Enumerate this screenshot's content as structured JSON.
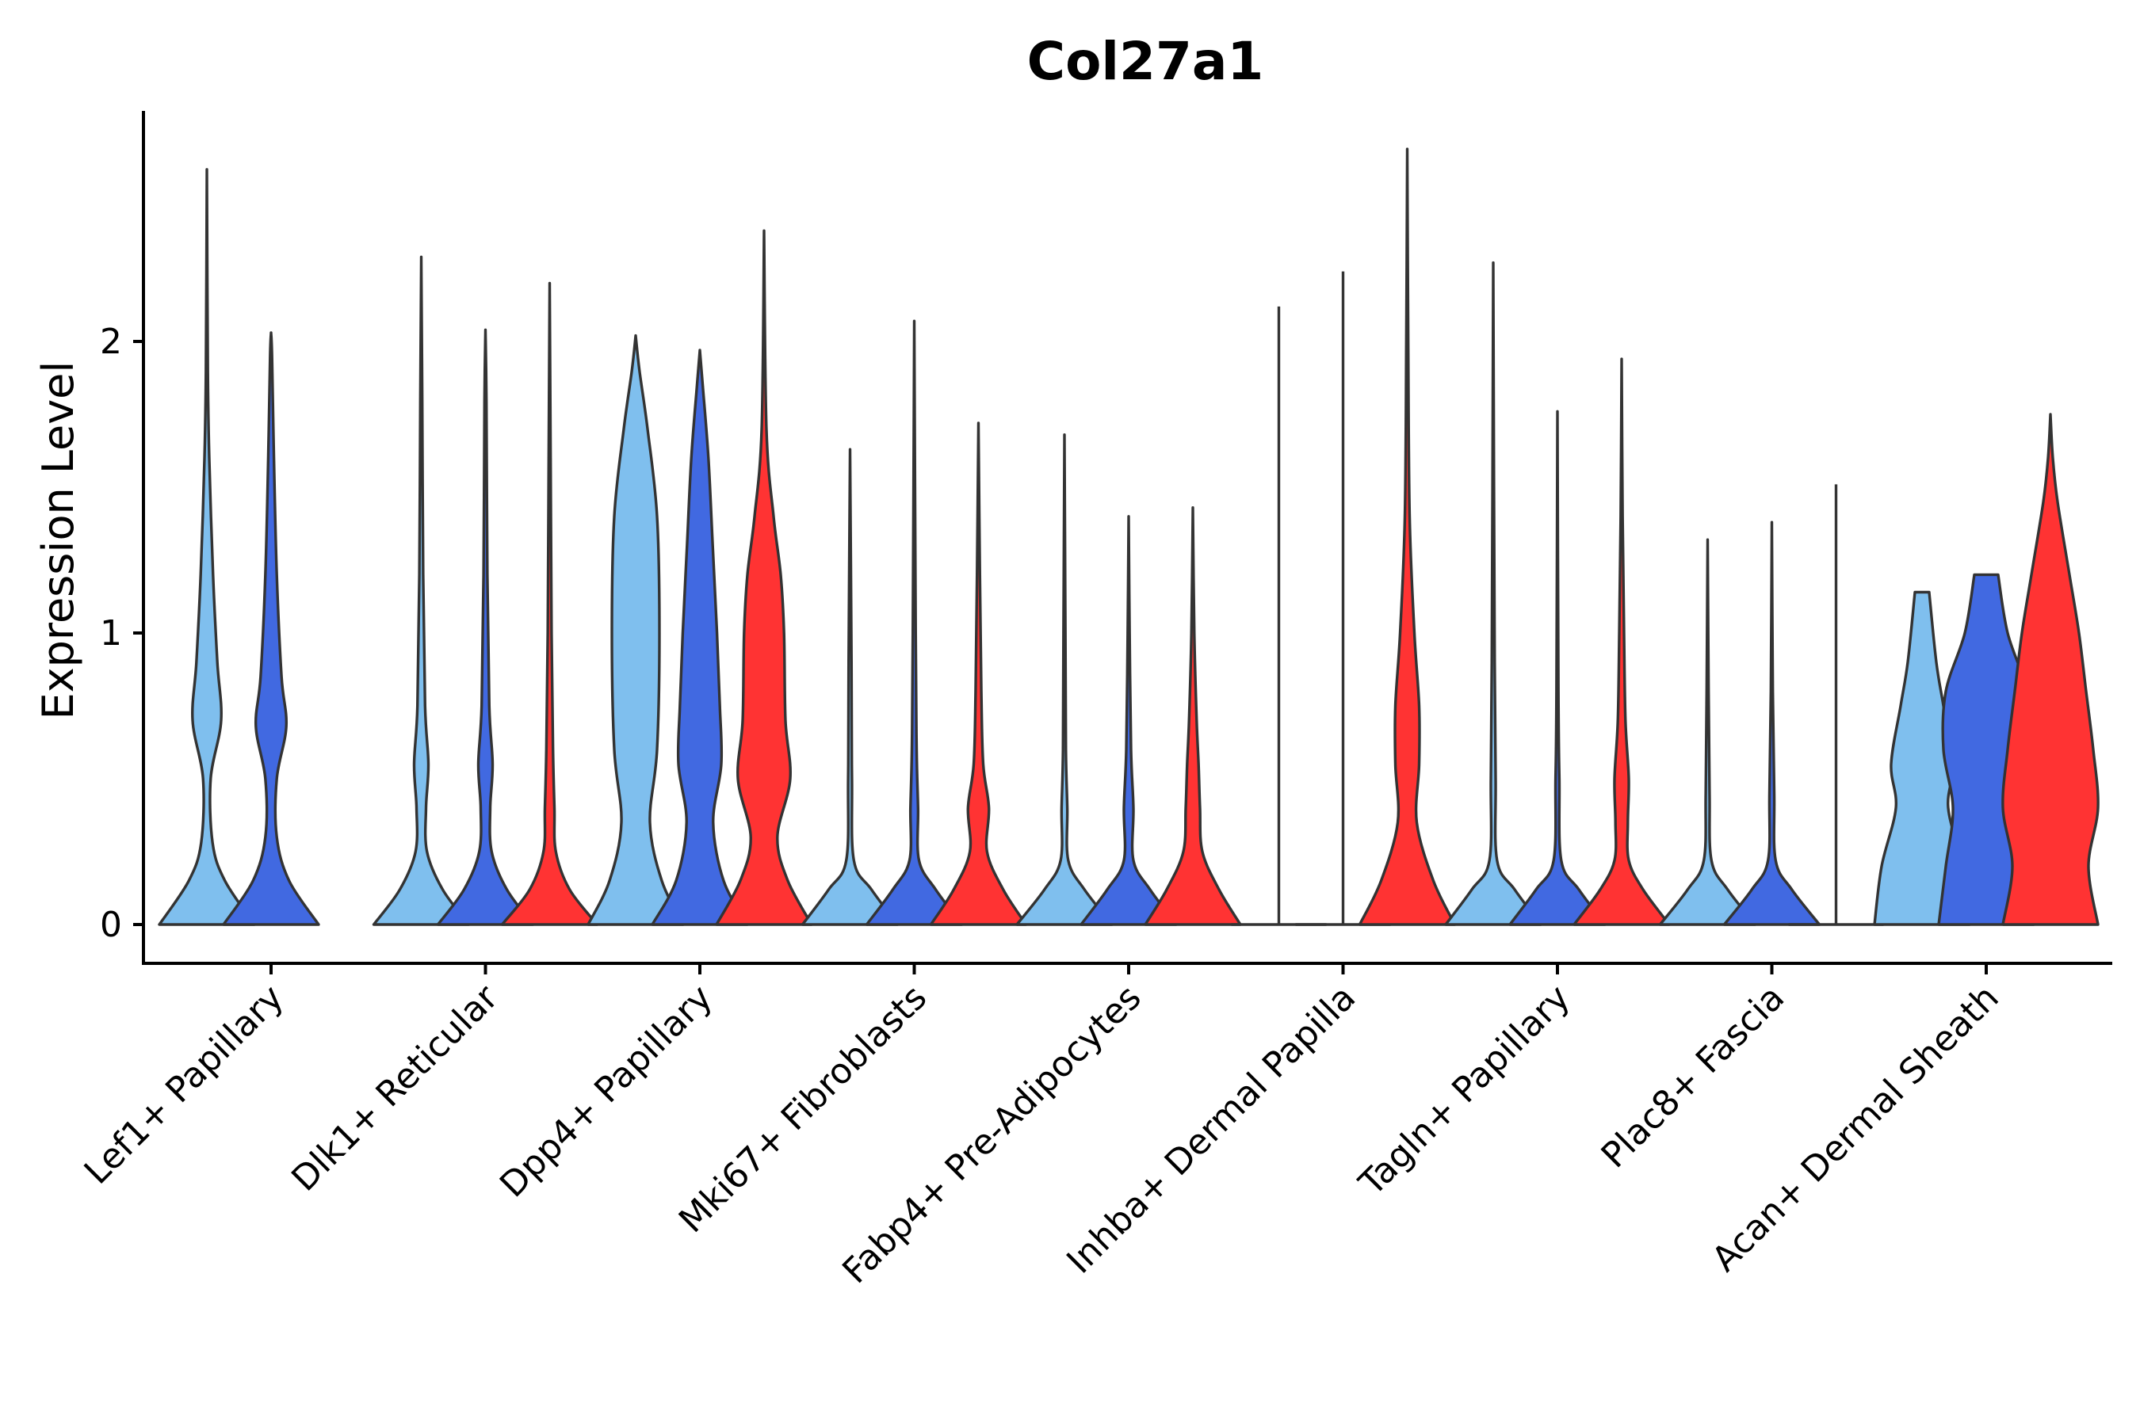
{
  "chart_data": {
    "type": "violin",
    "title": "Col27a1",
    "xlabel": "",
    "ylabel": "Expression Level",
    "ylim": [
      -0.13,
      2.8
    ],
    "yticks": [
      0,
      1,
      2
    ],
    "grid": false,
    "legend": "none",
    "colors": {
      "sample1": "#7fbfee",
      "sample2": "#4169e1",
      "sample3": "#ff3333",
      "outline": "#333333"
    },
    "categories": [
      "Lef1+ Papillary",
      "Dlk1+ Reticular",
      "Dpp4+ Papillary",
      "Mki67+ Fibroblasts",
      "Fabp4+ Pre-Adipocytes",
      "Inhba+ Dermal Papilla",
      "Tagln+ Papillary",
      "Plac8+ Fascia",
      "Acan+ Dermal Sheath"
    ],
    "violins": [
      {
        "category": 0,
        "slot": 0,
        "color": "sample1",
        "max": 2.59,
        "top_flat": false,
        "profile": [
          [
            0,
            1
          ],
          [
            0.15,
            0.38
          ],
          [
            0.28,
            0.12
          ],
          [
            0.5,
            0.08
          ],
          [
            0.7,
            0.3
          ],
          [
            0.9,
            0.22
          ],
          [
            1.2,
            0.13
          ],
          [
            1.6,
            0.05
          ],
          [
            1.9,
            0.02
          ],
          [
            2.59,
            0
          ]
        ]
      },
      {
        "category": 0,
        "slot": 1,
        "color": "sample2",
        "max": 2.03,
        "top_flat": false,
        "profile": [
          [
            0,
            1
          ],
          [
            0.15,
            0.38
          ],
          [
            0.3,
            0.12
          ],
          [
            0.5,
            0.12
          ],
          [
            0.68,
            0.32
          ],
          [
            0.85,
            0.22
          ],
          [
            1.2,
            0.12
          ],
          [
            1.6,
            0.06
          ],
          [
            1.95,
            0.02
          ],
          [
            2.03,
            0
          ]
        ]
      },
      {
        "category": 1,
        "slot": 0,
        "color": "sample1",
        "max": 2.29,
        "top_flat": false,
        "profile": [
          [
            0,
            1
          ],
          [
            0.12,
            0.45
          ],
          [
            0.25,
            0.12
          ],
          [
            0.4,
            0.1
          ],
          [
            0.55,
            0.15
          ],
          [
            0.75,
            0.08
          ],
          [
            1.2,
            0.04
          ],
          [
            1.8,
            0.02
          ],
          [
            2.29,
            0
          ]
        ]
      },
      {
        "category": 1,
        "slot": 1,
        "color": "sample2",
        "max": 2.04,
        "top_flat": false,
        "profile": [
          [
            0,
            1
          ],
          [
            0.12,
            0.45
          ],
          [
            0.25,
            0.13
          ],
          [
            0.4,
            0.1
          ],
          [
            0.55,
            0.15
          ],
          [
            0.75,
            0.08
          ],
          [
            1.2,
            0.04
          ],
          [
            1.8,
            0.02
          ],
          [
            2.04,
            0
          ]
        ]
      },
      {
        "category": 1,
        "slot": 2,
        "color": "sample3",
        "max": 2.2,
        "top_flat": false,
        "profile": [
          [
            0,
            1
          ],
          [
            0.12,
            0.42
          ],
          [
            0.25,
            0.13
          ],
          [
            0.4,
            0.1
          ],
          [
            0.6,
            0.07
          ],
          [
            1.0,
            0.04
          ],
          [
            1.6,
            0.02
          ],
          [
            2.2,
            0
          ]
        ]
      },
      {
        "category": 2,
        "slot": 0,
        "color": "sample1",
        "max": 2.02,
        "top_flat": false,
        "profile": [
          [
            0,
            1
          ],
          [
            0.15,
            0.55
          ],
          [
            0.35,
            0.3
          ],
          [
            0.6,
            0.45
          ],
          [
            1.0,
            0.5
          ],
          [
            1.4,
            0.45
          ],
          [
            1.7,
            0.25
          ],
          [
            1.9,
            0.08
          ],
          [
            2.02,
            0
          ]
        ]
      },
      {
        "category": 2,
        "slot": 1,
        "color": "sample2",
        "max": 1.97,
        "top_flat": false,
        "profile": [
          [
            0,
            1
          ],
          [
            0.15,
            0.5
          ],
          [
            0.35,
            0.28
          ],
          [
            0.55,
            0.45
          ],
          [
            0.75,
            0.42
          ],
          [
            1.0,
            0.36
          ],
          [
            1.3,
            0.27
          ],
          [
            1.6,
            0.18
          ],
          [
            1.85,
            0.06
          ],
          [
            1.97,
            0
          ]
        ]
      },
      {
        "category": 2,
        "slot": 2,
        "color": "sample3",
        "max": 2.38,
        "top_flat": false,
        "profile": [
          [
            0,
            1
          ],
          [
            0.15,
            0.5
          ],
          [
            0.3,
            0.28
          ],
          [
            0.5,
            0.55
          ],
          [
            0.7,
            0.45
          ],
          [
            1.0,
            0.42
          ],
          [
            1.2,
            0.35
          ],
          [
            1.4,
            0.2
          ],
          [
            1.7,
            0.05
          ],
          [
            2.38,
            0
          ]
        ]
      },
      {
        "category": 3,
        "slot": 0,
        "color": "sample1",
        "max": 1.63,
        "top_flat": false,
        "profile": [
          [
            0,
            1
          ],
          [
            0.12,
            0.45
          ],
          [
            0.22,
            0.08
          ],
          [
            0.5,
            0.04
          ],
          [
            0.9,
            0.03
          ],
          [
            1.63,
            0
          ]
        ]
      },
      {
        "category": 3,
        "slot": 1,
        "color": "sample2",
        "max": 2.07,
        "top_flat": false,
        "profile": [
          [
            0,
            1
          ],
          [
            0.12,
            0.45
          ],
          [
            0.22,
            0.1
          ],
          [
            0.4,
            0.08
          ],
          [
            0.6,
            0.05
          ],
          [
            1.0,
            0.03
          ],
          [
            2.07,
            0
          ]
        ]
      },
      {
        "category": 3,
        "slot": 2,
        "color": "sample3",
        "max": 1.72,
        "top_flat": false,
        "profile": [
          [
            0,
            1
          ],
          [
            0.12,
            0.52
          ],
          [
            0.25,
            0.18
          ],
          [
            0.4,
            0.22
          ],
          [
            0.55,
            0.1
          ],
          [
            0.8,
            0.06
          ],
          [
            1.2,
            0.03
          ],
          [
            1.72,
            0
          ]
        ]
      },
      {
        "category": 4,
        "slot": 0,
        "color": "sample1",
        "max": 1.68,
        "top_flat": false,
        "profile": [
          [
            0,
            1
          ],
          [
            0.12,
            0.42
          ],
          [
            0.22,
            0.08
          ],
          [
            0.4,
            0.06
          ],
          [
            0.6,
            0.03
          ],
          [
            1.0,
            0.02
          ],
          [
            1.68,
            0
          ]
        ]
      },
      {
        "category": 4,
        "slot": 1,
        "color": "sample2",
        "max": 1.4,
        "top_flat": false,
        "profile": [
          [
            0,
            1
          ],
          [
            0.12,
            0.45
          ],
          [
            0.22,
            0.1
          ],
          [
            0.4,
            0.1
          ],
          [
            0.6,
            0.05
          ],
          [
            1.0,
            0.02
          ],
          [
            1.4,
            0
          ]
        ]
      },
      {
        "category": 4,
        "slot": 2,
        "color": "sample3",
        "max": 1.43,
        "top_flat": false,
        "profile": [
          [
            0,
            1
          ],
          [
            0.12,
            0.55
          ],
          [
            0.25,
            0.2
          ],
          [
            0.4,
            0.15
          ],
          [
            0.55,
            0.12
          ],
          [
            0.7,
            0.08
          ],
          [
            1.0,
            0.03
          ],
          [
            1.43,
            0
          ]
        ]
      },
      {
        "category": 5,
        "slot": 0,
        "color": "sample1",
        "max": 2.12,
        "top_flat": false,
        "profile": [
          [
            0,
            0
          ],
          [
            2.12,
            0
          ]
        ]
      },
      {
        "category": 5,
        "slot": 1,
        "color": "sample2",
        "max": 2.24,
        "top_flat": false,
        "profile": [
          [
            0,
            0
          ],
          [
            2.24,
            0
          ]
        ]
      },
      {
        "category": 5,
        "slot": 2,
        "color": "sample3",
        "max": 2.66,
        "top_flat": false,
        "profile": [
          [
            0,
            1
          ],
          [
            0.15,
            0.55
          ],
          [
            0.35,
            0.2
          ],
          [
            0.55,
            0.25
          ],
          [
            0.75,
            0.25
          ],
          [
            1.0,
            0.15
          ],
          [
            1.4,
            0.05
          ],
          [
            2.0,
            0.02
          ],
          [
            2.66,
            0
          ]
        ]
      },
      {
        "category": 6,
        "slot": 0,
        "color": "sample1",
        "max": 2.27,
        "top_flat": false,
        "profile": [
          [
            0,
            1
          ],
          [
            0.12,
            0.45
          ],
          [
            0.22,
            0.08
          ],
          [
            0.5,
            0.05
          ],
          [
            0.9,
            0.03
          ],
          [
            1.5,
            0.015
          ],
          [
            2.27,
            0
          ]
        ]
      },
      {
        "category": 6,
        "slot": 1,
        "color": "sample2",
        "max": 1.76,
        "top_flat": false,
        "profile": [
          [
            0,
            1
          ],
          [
            0.12,
            0.45
          ],
          [
            0.22,
            0.08
          ],
          [
            0.5,
            0.04
          ],
          [
            0.8,
            0.02
          ],
          [
            1.76,
            0
          ]
        ]
      },
      {
        "category": 6,
        "slot": 2,
        "color": "sample3",
        "max": 1.94,
        "top_flat": false,
        "profile": [
          [
            0,
            1
          ],
          [
            0.12,
            0.45
          ],
          [
            0.22,
            0.15
          ],
          [
            0.35,
            0.13
          ],
          [
            0.5,
            0.15
          ],
          [
            0.7,
            0.08
          ],
          [
            1.0,
            0.05
          ],
          [
            1.4,
            0.02
          ],
          [
            1.94,
            0
          ]
        ]
      },
      {
        "category": 7,
        "slot": 0,
        "color": "sample1",
        "max": 1.32,
        "top_flat": false,
        "profile": [
          [
            0,
            1
          ],
          [
            0.12,
            0.42
          ],
          [
            0.22,
            0.08
          ],
          [
            0.45,
            0.04
          ],
          [
            0.8,
            0.02
          ],
          [
            1.32,
            0
          ]
        ]
      },
      {
        "category": 7,
        "slot": 1,
        "color": "sample2",
        "max": 1.38,
        "top_flat": false,
        "profile": [
          [
            0,
            1
          ],
          [
            0.12,
            0.42
          ],
          [
            0.22,
            0.08
          ],
          [
            0.45,
            0.05
          ],
          [
            0.8,
            0.02
          ],
          [
            1.38,
            0
          ]
        ]
      },
      {
        "category": 7,
        "slot": 2,
        "color": "sample3",
        "max": 1.51,
        "top_flat": false,
        "profile": [
          [
            0,
            0
          ],
          [
            1.51,
            0
          ]
        ]
      },
      {
        "category": 8,
        "slot": 0,
        "color": "sample1",
        "max": 1.14,
        "top_flat": true,
        "profile": [
          [
            0,
            1
          ],
          [
            0.2,
            0.85
          ],
          [
            0.4,
            0.55
          ],
          [
            0.55,
            0.65
          ],
          [
            0.75,
            0.45
          ],
          [
            0.9,
            0.3
          ],
          [
            1.14,
            0.15
          ]
        ]
      },
      {
        "category": 8,
        "slot": 1,
        "color": "sample2",
        "max": 1.2,
        "top_flat": true,
        "profile": [
          [
            0,
            1
          ],
          [
            0.2,
            0.85
          ],
          [
            0.4,
            0.7
          ],
          [
            0.6,
            0.9
          ],
          [
            0.8,
            0.85
          ],
          [
            1.0,
            0.45
          ],
          [
            1.2,
            0.25
          ]
        ]
      },
      {
        "category": 8,
        "slot": 2,
        "color": "sample3",
        "max": 1.75,
        "top_flat": false,
        "profile": [
          [
            0,
            1
          ],
          [
            0.2,
            0.8
          ],
          [
            0.4,
            1.0
          ],
          [
            0.6,
            0.9
          ],
          [
            0.8,
            0.75
          ],
          [
            1.0,
            0.6
          ],
          [
            1.2,
            0.4
          ],
          [
            1.45,
            0.15
          ],
          [
            1.6,
            0.05
          ],
          [
            1.75,
            0
          ]
        ]
      }
    ]
  }
}
